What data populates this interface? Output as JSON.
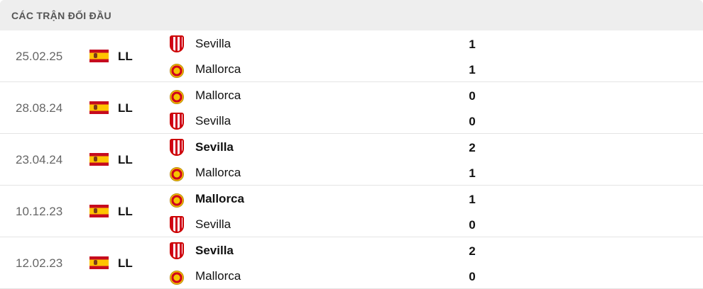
{
  "header": {
    "title": "CÁC TRẬN ĐỐI ĐẦU"
  },
  "matches": [
    {
      "date": "25.02.25",
      "league": "LL",
      "home": {
        "name": "Sevilla",
        "logo": "sevilla",
        "score": "1",
        "winner": false
      },
      "away": {
        "name": "Mallorca",
        "logo": "mallorca",
        "score": "1",
        "winner": false
      }
    },
    {
      "date": "28.08.24",
      "league": "LL",
      "home": {
        "name": "Mallorca",
        "logo": "mallorca",
        "score": "0",
        "winner": false
      },
      "away": {
        "name": "Sevilla",
        "logo": "sevilla",
        "score": "0",
        "winner": false
      }
    },
    {
      "date": "23.04.24",
      "league": "LL",
      "home": {
        "name": "Sevilla",
        "logo": "sevilla",
        "score": "2",
        "winner": true
      },
      "away": {
        "name": "Mallorca",
        "logo": "mallorca",
        "score": "1",
        "winner": false
      }
    },
    {
      "date": "10.12.23",
      "league": "LL",
      "home": {
        "name": "Mallorca",
        "logo": "mallorca",
        "score": "1",
        "winner": true
      },
      "away": {
        "name": "Sevilla",
        "logo": "sevilla",
        "score": "0",
        "winner": false
      }
    },
    {
      "date": "12.02.23",
      "league": "LL",
      "home": {
        "name": "Sevilla",
        "logo": "sevilla",
        "score": "2",
        "winner": true
      },
      "away": {
        "name": "Mallorca",
        "logo": "mallorca",
        "score": "0",
        "winner": false
      }
    }
  ],
  "colors": {
    "header_bg": "#eeeeee",
    "spain_red": "#c60b1e",
    "spain_yellow": "#ffc400"
  }
}
